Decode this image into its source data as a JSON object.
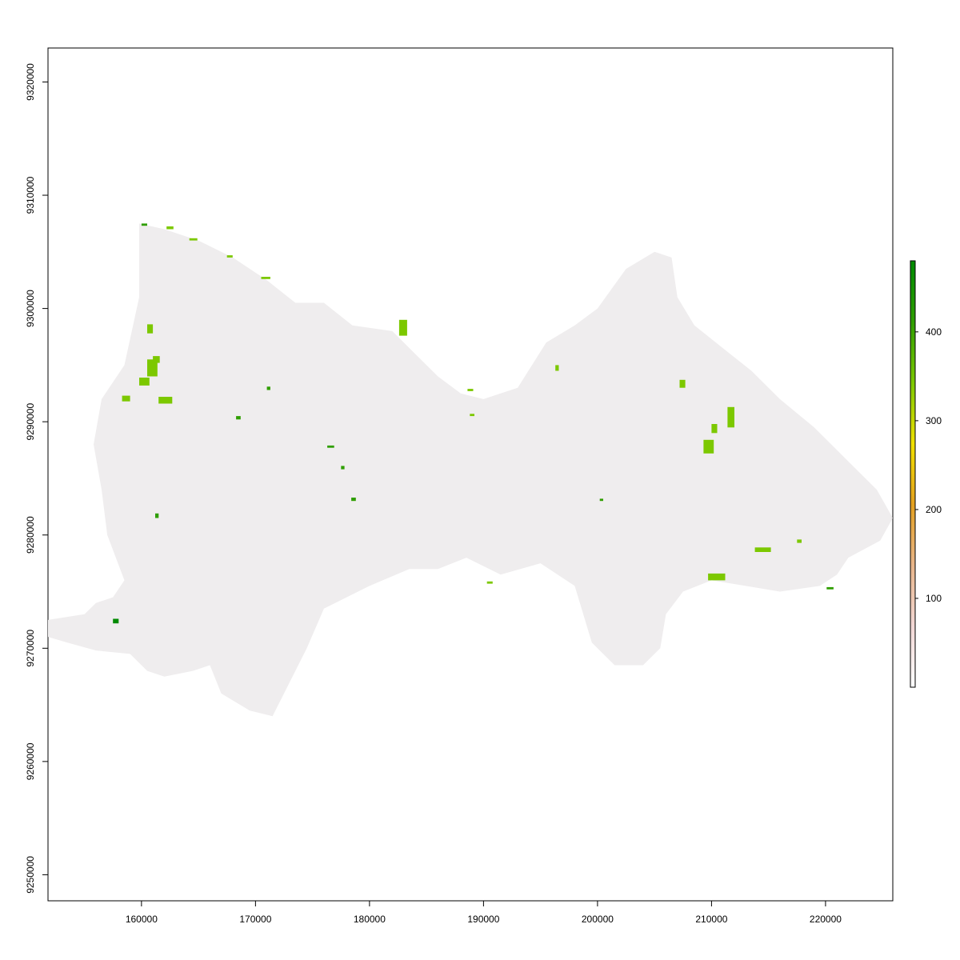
{
  "chart_data": {
    "type": "heatmap",
    "title": "",
    "xlabel": "",
    "ylabel": "",
    "xlim": [
      151800,
      225900
    ],
    "ylim": [
      9247700,
      9323000
    ],
    "x_ticks": [
      160000,
      170000,
      180000,
      190000,
      200000,
      210000,
      220000
    ],
    "y_ticks": [
      9250000,
      9260000,
      9270000,
      9280000,
      9290000,
      9300000,
      9310000,
      9320000
    ],
    "x_tick_labels": [
      "160000",
      "170000",
      "180000",
      "190000",
      "200000",
      "210000",
      "220000"
    ],
    "y_tick_labels": [
      "9250000",
      "9260000",
      "9270000",
      "9280000",
      "9290000",
      "9300000",
      "9310000",
      "9320000"
    ],
    "colorbar": {
      "range": [
        0,
        480
      ],
      "ticks": [
        100,
        200,
        300,
        400
      ],
      "tick_labels": [
        "100",
        "200",
        "300",
        "400"
      ],
      "colors": [
        "#ffffff",
        "#f2d7d5",
        "#e8b58a",
        "#e3a020",
        "#f0e000",
        "#7cc800",
        "#2f9e00",
        "#008a00"
      ]
    },
    "background_value_color": "#efedee",
    "region_outline": [
      [
        151800,
        9272500
      ],
      [
        155000,
        9273000
      ],
      [
        156000,
        9274000
      ],
      [
        157500,
        9274500
      ],
      [
        158500,
        9276000
      ],
      [
        157000,
        9280000
      ],
      [
        156500,
        9284000
      ],
      [
        155800,
        9288000
      ],
      [
        156500,
        9292000
      ],
      [
        158500,
        9295000
      ],
      [
        159800,
        9301000
      ],
      [
        159800,
        9307500
      ],
      [
        162000,
        9307000
      ],
      [
        165000,
        9306000
      ],
      [
        168000,
        9304500
      ],
      [
        171000,
        9302500
      ],
      [
        173500,
        9300500
      ],
      [
        176000,
        9300500
      ],
      [
        178500,
        9298500
      ],
      [
        182000,
        9298000
      ],
      [
        184000,
        9296000
      ],
      [
        186000,
        9294000
      ],
      [
        188000,
        9292500
      ],
      [
        190000,
        9292000
      ],
      [
        193000,
        9293000
      ],
      [
        195500,
        9297000
      ],
      [
        198000,
        9298500
      ],
      [
        200000,
        9300000
      ],
      [
        202500,
        9303500
      ],
      [
        205000,
        9305000
      ],
      [
        206500,
        9304500
      ],
      [
        207000,
        9301000
      ],
      [
        208500,
        9298500
      ],
      [
        211000,
        9296500
      ],
      [
        213500,
        9294500
      ],
      [
        216000,
        9292000
      ],
      [
        219000,
        9289500
      ],
      [
        222000,
        9286500
      ],
      [
        224500,
        9284000
      ],
      [
        225900,
        9281500
      ],
      [
        224800,
        9279500
      ],
      [
        222000,
        9278000
      ],
      [
        221000,
        9276500
      ],
      [
        219500,
        9275500
      ],
      [
        216000,
        9275000
      ],
      [
        213000,
        9275500
      ],
      [
        210000,
        9276000
      ],
      [
        207500,
        9275000
      ],
      [
        206000,
        9273000
      ],
      [
        205500,
        9270000
      ],
      [
        204000,
        9268500
      ],
      [
        201500,
        9268500
      ],
      [
        199500,
        9270500
      ],
      [
        198000,
        9275500
      ],
      [
        195000,
        9277500
      ],
      [
        191500,
        9276500
      ],
      [
        188500,
        9278000
      ],
      [
        186000,
        9277000
      ],
      [
        183500,
        9277000
      ],
      [
        180000,
        9275500
      ],
      [
        176000,
        9273500
      ],
      [
        174500,
        9270000
      ],
      [
        173000,
        9267000
      ],
      [
        171500,
        9264000
      ],
      [
        169500,
        9264500
      ],
      [
        167000,
        9266000
      ],
      [
        166000,
        9268500
      ],
      [
        164500,
        9268000
      ],
      [
        162000,
        9267500
      ],
      [
        160500,
        9268000
      ],
      [
        159000,
        9269500
      ],
      [
        156000,
        9269800
      ],
      [
        153500,
        9270500
      ],
      [
        151800,
        9271000
      ]
    ],
    "green_patches": [
      {
        "x": 160500,
        "y": 9294000,
        "w": 900,
        "h": 1500,
        "v": 320
      },
      {
        "x": 159800,
        "y": 9293200,
        "w": 900,
        "h": 700,
        "v": 340
      },
      {
        "x": 158300,
        "y": 9291800,
        "w": 700,
        "h": 500,
        "v": 330
      },
      {
        "x": 161500,
        "y": 9291600,
        "w": 1200,
        "h": 600,
        "v": 320
      },
      {
        "x": 161000,
        "y": 9295200,
        "w": 600,
        "h": 600,
        "v": 330
      },
      {
        "x": 160500,
        "y": 9297800,
        "w": 500,
        "h": 800,
        "v": 330
      },
      {
        "x": 162200,
        "y": 9307000,
        "w": 600,
        "h": 250,
        "v": 360
      },
      {
        "x": 160000,
        "y": 9307300,
        "w": 500,
        "h": 200,
        "v": 380
      },
      {
        "x": 164200,
        "y": 9306000,
        "w": 700,
        "h": 200,
        "v": 360
      },
      {
        "x": 167500,
        "y": 9304500,
        "w": 500,
        "h": 200,
        "v": 360
      },
      {
        "x": 170500,
        "y": 9302600,
        "w": 800,
        "h": 200,
        "v": 360
      },
      {
        "x": 182600,
        "y": 9297600,
        "w": 700,
        "h": 1400,
        "v": 320
      },
      {
        "x": 171000,
        "y": 9292800,
        "w": 300,
        "h": 300,
        "v": 380
      },
      {
        "x": 168300,
        "y": 9290200,
        "w": 400,
        "h": 300,
        "v": 420
      },
      {
        "x": 176300,
        "y": 9287700,
        "w": 600,
        "h": 200,
        "v": 380
      },
      {
        "x": 177500,
        "y": 9285800,
        "w": 300,
        "h": 300,
        "v": 420
      },
      {
        "x": 178400,
        "y": 9283000,
        "w": 400,
        "h": 300,
        "v": 430
      },
      {
        "x": 161200,
        "y": 9281500,
        "w": 300,
        "h": 400,
        "v": 420
      },
      {
        "x": 157500,
        "y": 9272200,
        "w": 500,
        "h": 400,
        "v": 450
      },
      {
        "x": 188600,
        "y": 9292700,
        "w": 500,
        "h": 200,
        "v": 330
      },
      {
        "x": 188800,
        "y": 9290500,
        "w": 400,
        "h": 200,
        "v": 340
      },
      {
        "x": 196300,
        "y": 9294500,
        "w": 300,
        "h": 500,
        "v": 360
      },
      {
        "x": 209300,
        "y": 9287200,
        "w": 900,
        "h": 1200,
        "v": 330
      },
      {
        "x": 211400,
        "y": 9289500,
        "w": 600,
        "h": 1800,
        "v": 330
      },
      {
        "x": 210000,
        "y": 9289000,
        "w": 500,
        "h": 800,
        "v": 340
      },
      {
        "x": 207200,
        "y": 9293000,
        "w": 500,
        "h": 700,
        "v": 340
      },
      {
        "x": 209700,
        "y": 9276000,
        "w": 1500,
        "h": 600,
        "v": 330
      },
      {
        "x": 213800,
        "y": 9278500,
        "w": 1400,
        "h": 400,
        "v": 330
      },
      {
        "x": 217500,
        "y": 9279300,
        "w": 400,
        "h": 300,
        "v": 360
      },
      {
        "x": 220100,
        "y": 9275200,
        "w": 600,
        "h": 200,
        "v": 420
      },
      {
        "x": 200200,
        "y": 9283000,
        "w": 300,
        "h": 200,
        "v": 380
      },
      {
        "x": 190300,
        "y": 9275700,
        "w": 500,
        "h": 200,
        "v": 330
      }
    ]
  }
}
